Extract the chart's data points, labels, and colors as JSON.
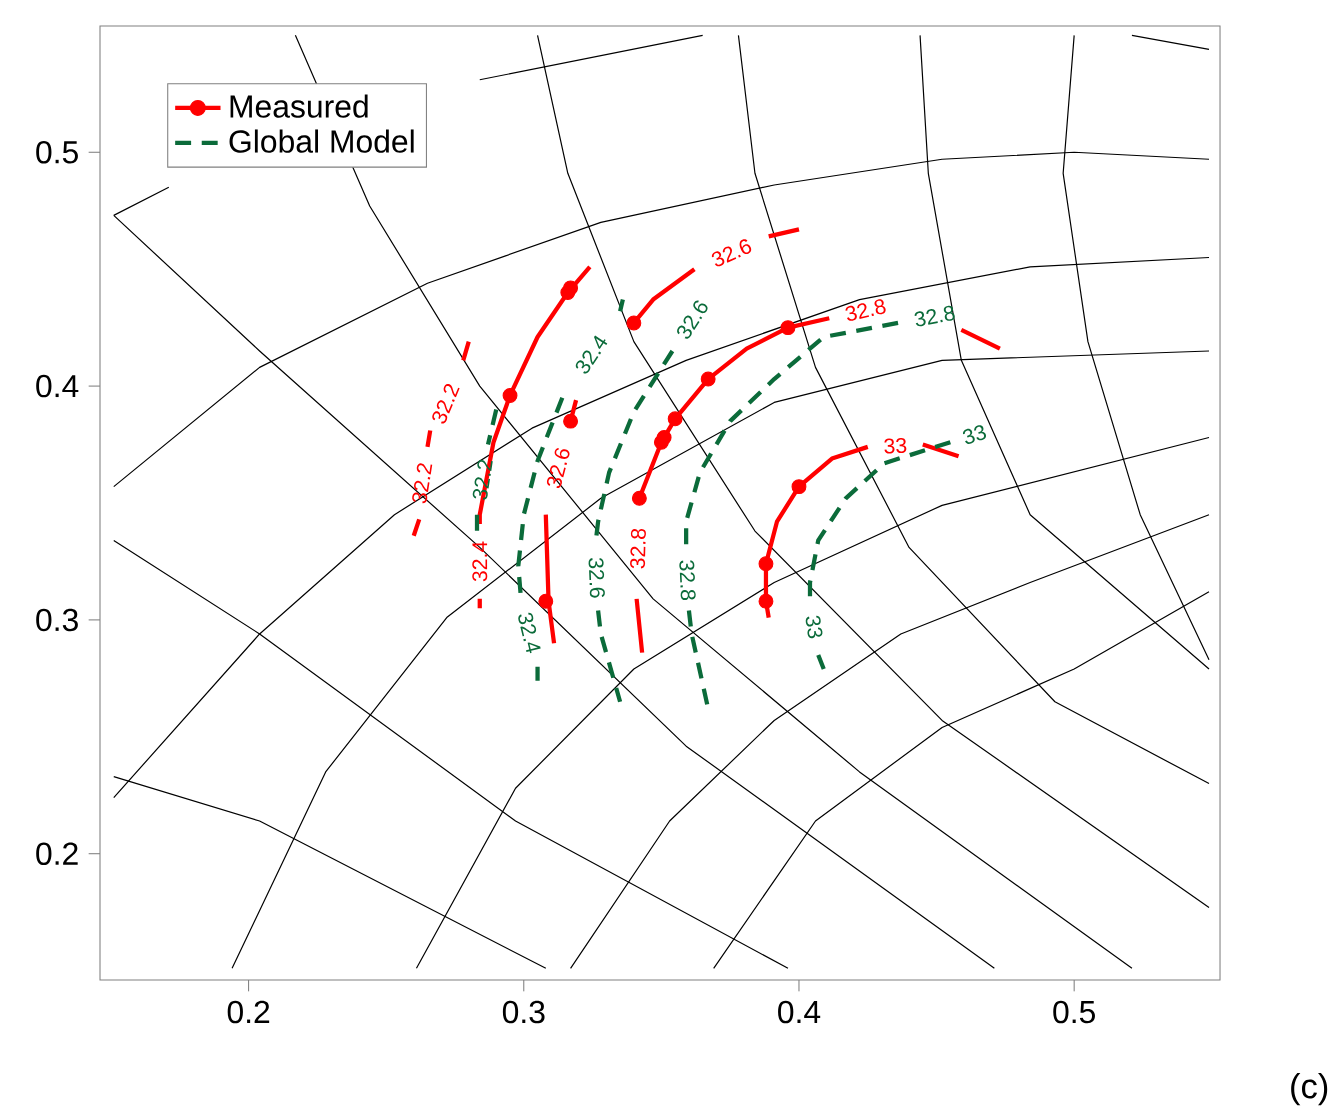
{
  "chart_data": {
    "type": "line",
    "xlim": [
      0.146,
      0.553
    ],
    "ylim": [
      0.146,
      0.554
    ],
    "xticks": [
      0.2,
      0.3,
      0.4,
      0.5
    ],
    "yticks": [
      0.2,
      0.3,
      0.4,
      0.5
    ],
    "legend": "top left",
    "series": [
      {
        "color": "#000000",
        "x": [
          0.151,
          0.171,
          null,
          0.284,
          0.365
        ],
        "values": [
          0.473,
          0.485,
          null,
          0.531,
          0.55
        ]
      },
      {
        "color": "#000000",
        "x": [
          0.521,
          0.549
        ],
        "values": [
          0.55,
          0.544
        ]
      },
      {
        "color": "#000000",
        "x": [
          0.151,
          0.204,
          0.265,
          0.328,
          0.391,
          0.452,
          0.5,
          0.549
        ],
        "values": [
          0.357,
          0.408,
          0.444,
          0.47,
          0.486,
          0.497,
          0.5,
          0.497
        ]
      },
      {
        "color": "#000000",
        "x": [
          0.151,
          0.204,
          0.253,
          0.303,
          0.359,
          0.422,
          0.484,
          0.549
        ],
        "values": [
          0.224,
          0.294,
          0.345,
          0.382,
          0.411,
          0.437,
          0.451,
          0.455
        ]
      },
      {
        "color": "#000000",
        "x": [
          0.194,
          0.228,
          0.272,
          0.328,
          0.391,
          0.452,
          0.549
        ],
        "values": [
          0.151,
          0.235,
          0.301,
          0.352,
          0.393,
          0.411,
          0.415
        ]
      },
      {
        "color": "#000000",
        "x": [
          0.261,
          0.297,
          0.34,
          0.391,
          0.452,
          0.549
        ],
        "values": [
          0.151,
          0.228,
          0.279,
          0.316,
          0.349,
          0.378
        ]
      },
      {
        "color": "#000000",
        "x": [
          0.317,
          0.353,
          0.391,
          0.437,
          0.484,
          0.549
        ],
        "values": [
          0.151,
          0.214,
          0.257,
          0.294,
          0.316,
          0.345
        ]
      },
      {
        "color": "#000000",
        "x": [
          0.369,
          0.406,
          0.452,
          0.5,
          0.549
        ],
        "values": [
          0.151,
          0.214,
          0.254,
          0.279,
          0.312
        ]
      },
      {
        "color": "#000000",
        "x": [
          0.151,
          0.204,
          0.308
        ],
        "values": [
          0.233,
          0.214,
          0.151
        ]
      },
      {
        "color": "#000000",
        "x": [
          0.151,
          0.204,
          0.297,
          0.396
        ],
        "values": [
          0.334,
          0.294,
          0.214,
          0.151
        ]
      },
      {
        "color": "#000000",
        "x": [
          0.151,
          0.204,
          0.284,
          0.359,
          0.471
        ],
        "values": [
          0.473,
          0.415,
          0.331,
          0.246,
          0.151
        ]
      },
      {
        "color": "#000000",
        "x": [
          0.217,
          0.244,
          0.284,
          0.347,
          0.422,
          0.521
        ],
        "values": [
          0.55,
          0.477,
          0.4,
          0.309,
          0.235,
          0.151
        ]
      },
      {
        "color": "#000000",
        "x": [
          0.305,
          0.316,
          0.34,
          0.384,
          0.452,
          0.549
        ],
        "values": [
          0.55,
          0.491,
          0.419,
          0.338,
          0.257,
          0.177
        ]
      },
      {
        "color": "#000000",
        "x": [
          0.378,
          0.384,
          0.406,
          0.44,
          0.493,
          0.549
        ],
        "values": [
          0.55,
          0.491,
          0.408,
          0.331,
          0.265,
          0.23
        ]
      },
      {
        "color": "#000000",
        "x": [
          0.444,
          0.447,
          0.459,
          0.484,
          0.549
        ],
        "values": [
          0.55,
          0.491,
          0.411,
          0.345,
          0.279
        ]
      },
      {
        "color": "#000000",
        "x": [
          0.5,
          0.496,
          0.505,
          0.524,
          0.549
        ],
        "values": [
          0.55,
          0.491,
          0.419,
          0.345,
          0.283
        ]
      },
      {
        "color": "#ff0000",
        "line_style": "solid",
        "x": [
          0.28,
          0.278,
          null,
          0.265,
          0.266,
          null,
          0.26,
          0.262
        ],
        "values": [
          0.419,
          0.411,
          null,
          0.374,
          0.381,
          null,
          0.336,
          0.343
        ]
      },
      {
        "color": "#ff0000",
        "line_style": "solid",
        "x": [
          0.284,
          0.284,
          null,
          0.284,
          0.284,
          0.289,
          0.295,
          0.305,
          0.316,
          0.324
        ],
        "values": [
          0.305,
          0.309,
          null,
          0.341,
          0.345,
          0.376,
          0.396,
          0.421,
          0.44,
          0.451
        ]
      },
      {
        "color": "#ff0000",
        "line_style": "solid",
        "x": [
          0.311,
          0.309,
          0.308,
          null,
          0.317,
          0.319,
          null,
          0.34,
          0.347,
          0.362,
          null,
          0.389,
          0.4
        ],
        "values": [
          0.29,
          0.308,
          0.345,
          null,
          0.385,
          0.394,
          null,
          0.427,
          0.437,
          0.45,
          null,
          0.464,
          0.467
        ]
      },
      {
        "color": "#ff0000",
        "line_style": "solid",
        "x": [
          0.343,
          0.341,
          null,
          0.342,
          0.35,
          0.355,
          0.367,
          0.381,
          0.396,
          0.411
        ],
        "values": [
          0.286,
          0.309,
          null,
          0.352,
          0.376,
          0.386,
          0.403,
          0.416,
          0.425,
          0.429
        ]
      },
      {
        "color": "#ff0000",
        "line_style": "solid",
        "x": [
          0.389,
          0.388,
          0.388,
          0.392,
          0.4,
          0.412,
          0.425,
          null,
          0.445,
          0.458
        ],
        "values": [
          0.301,
          0.308,
          0.324,
          0.342,
          0.357,
          0.369,
          0.374,
          null,
          0.375,
          0.37
        ]
      },
      {
        "color": "#ff0000",
        "line_style": "solid",
        "x": [
          0.459,
          0.473
        ],
        "values": [
          0.424,
          0.416
        ]
      },
      {
        "name": "Measured",
        "type": "scatter",
        "marker": "circle",
        "color": "#ff0000",
        "x": [
          0.295,
          0.316,
          0.317,
          0.317,
          0.308,
          0.34,
          0.342,
          0.35,
          0.351,
          0.355,
          0.367,
          0.396,
          0.388,
          0.388,
          0.4
        ],
        "values": [
          0.396,
          0.44,
          0.442,
          0.385,
          0.308,
          0.427,
          0.352,
          0.376,
          0.378,
          0.386,
          0.403,
          0.425,
          0.308,
          0.324,
          0.357
        ]
      },
      {
        "name": "Global Model",
        "color": "#0b6b3a",
        "line_style": "dashed",
        "x": [
          0.29,
          0.287,
          null,
          0.283,
          0.283
        ],
        "values": [
          0.39,
          0.375,
          null,
          0.345,
          0.336
        ]
      },
      {
        "color": "#0b6b3a",
        "line_style": "dashed",
        "x": [
          0.336,
          0.335,
          null,
          0.314,
          0.305,
          0.3,
          0.298,
          0.299,
          null,
          0.305,
          0.305
        ],
        "values": [
          0.437,
          0.432,
          null,
          0.395,
          0.368,
          0.345,
          0.323,
          0.309,
          null,
          0.28,
          0.274
        ]
      },
      {
        "color": "#0b6b3a",
        "line_style": "dashed",
        "x": [
          0.354,
          0.34,
          0.331,
          0.327,
          0.326,
          null,
          0.327,
          0.328,
          0.335
        ],
        "values": [
          0.415,
          0.389,
          0.363,
          0.342,
          0.332,
          null,
          0.304,
          0.294,
          0.265
        ]
      },
      {
        "color": "#0b6b3a",
        "line_style": "dashed",
        "x": [
          0.436,
          0.409,
          0.391,
          0.375,
          0.364,
          0.359,
          0.359,
          null,
          0.36,
          0.361,
          0.367
        ],
        "values": [
          0.427,
          0.421,
          0.403,
          0.385,
          0.363,
          0.342,
          0.33,
          null,
          0.304,
          0.294,
          0.262
        ]
      },
      {
        "color": "#0b6b3a",
        "line_style": "dashed",
        "x": [
          0.455,
          0.431,
          0.417,
          0.407,
          0.404,
          0.404,
          null,
          0.407,
          0.409
        ],
        "values": [
          0.376,
          0.367,
          0.352,
          0.334,
          0.316,
          0.309,
          null,
          0.285,
          0.279
        ]
      }
    ],
    "annotations": [
      {
        "text": "32.2",
        "x": 0.278,
        "y": 0.411
      },
      {
        "text": "32.2",
        "x": 0.266,
        "y": 0.381
      },
      {
        "text": "32.4",
        "x": 0.284,
        "y": 0.309
      },
      {
        "text": "32.6",
        "x": 0.308,
        "y": 0.345
      },
      {
        "text": "32.6",
        "x": 0.362,
        "y": 0.45
      },
      {
        "text": "32.8",
        "x": 0.341,
        "y": 0.309
      },
      {
        "text": "32.8",
        "x": 0.411,
        "y": 0.429
      },
      {
        "text": "33",
        "x": 0.425,
        "y": 0.374
      },
      {
        "text": "32.2",
        "x": 0.287,
        "y": 0.375
      },
      {
        "text": "32.4",
        "x": 0.335,
        "y": 0.432
      },
      {
        "text": "32.4",
        "x": 0.299,
        "y": 0.309
      },
      {
        "text": "32.6",
        "x": 0.354,
        "y": 0.415
      },
      {
        "text": "32.6",
        "x": 0.326,
        "y": 0.332
      },
      {
        "text": "32.8",
        "x": 0.436,
        "y": 0.427
      },
      {
        "text": "32.8",
        "x": 0.359,
        "y": 0.33
      },
      {
        "text": "33",
        "x": 0.455,
        "y": 0.376
      },
      {
        "text": "33",
        "x": 0.404,
        "y": 0.309
      },
      "(c)"
    ]
  }
}
